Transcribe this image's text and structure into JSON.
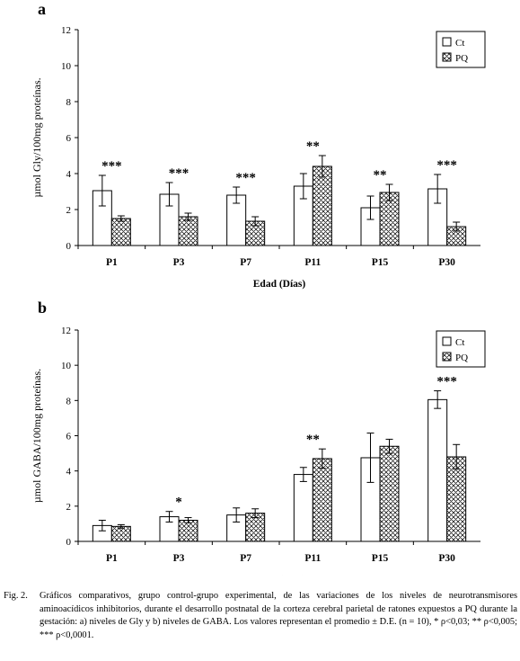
{
  "chart_data": [
    {
      "type": "bar",
      "panel": "a",
      "ylabel": "µmol Gly/100mg proteínas.",
      "xlabel": "Edad (Días)",
      "ylim": [
        0,
        12
      ],
      "yticks": [
        "0",
        "2",
        "4",
        "6",
        "8",
        "10",
        "12"
      ],
      "legend": "top-right",
      "categories": [
        "P1",
        "P3",
        "P7",
        "P11",
        "P15",
        "P30"
      ],
      "series": [
        {
          "name": "Ct",
          "values": [
            3.05,
            2.85,
            2.8,
            3.3,
            2.1,
            3.15
          ],
          "err": [
            0.85,
            0.65,
            0.45,
            0.7,
            0.65,
            0.8
          ]
        },
        {
          "name": "PQ",
          "values": [
            1.5,
            1.6,
            1.35,
            4.4,
            2.95,
            1.05
          ],
          "err": [
            0.15,
            0.2,
            0.25,
            0.6,
            0.45,
            0.25
          ]
        }
      ],
      "annotations": [
        "***",
        "***",
        "***",
        "**",
        "**",
        "***"
      ]
    },
    {
      "type": "bar",
      "panel": "b",
      "ylabel": "µmol GABA/100mg proteínas.",
      "xlabel": "Edad (Días)",
      "ylim": [
        0,
        12
      ],
      "yticks": [
        "0",
        "2",
        "4",
        "6",
        "8",
        "10",
        "12"
      ],
      "legend": "top-right",
      "categories": [
        "P1",
        "P3",
        "P7",
        "P11",
        "P15",
        "P30"
      ],
      "series": [
        {
          "name": "Ct",
          "values": [
            0.9,
            1.4,
            1.5,
            3.8,
            4.75,
            8.05
          ],
          "err": [
            0.3,
            0.3,
            0.4,
            0.4,
            1.4,
            0.5
          ]
        },
        {
          "name": "PQ",
          "values": [
            0.85,
            1.2,
            1.6,
            4.7,
            5.4,
            4.8
          ],
          "err": [
            0.1,
            0.15,
            0.25,
            0.55,
            0.4,
            0.7
          ]
        }
      ],
      "annotations": [
        "",
        "*",
        "",
        "**",
        "",
        "***"
      ]
    }
  ],
  "caption": {
    "label": "Fig. 2.",
    "text": "Gráficos comparativos, grupo control-grupo experimental, de las variaciones de los niveles de neurotransmisores aminoacídicos inhibitorios, durante el desarrollo postnatal de la corteza cerebral parietal de ratones expuestos a PQ durante la gestación: a) niveles de Gly y b) niveles de GABA. Los valores representan el promedio ± D.E. (n = 10), * ρ<0,03; ** ρ<0,005; *** ρ<0,0001."
  }
}
